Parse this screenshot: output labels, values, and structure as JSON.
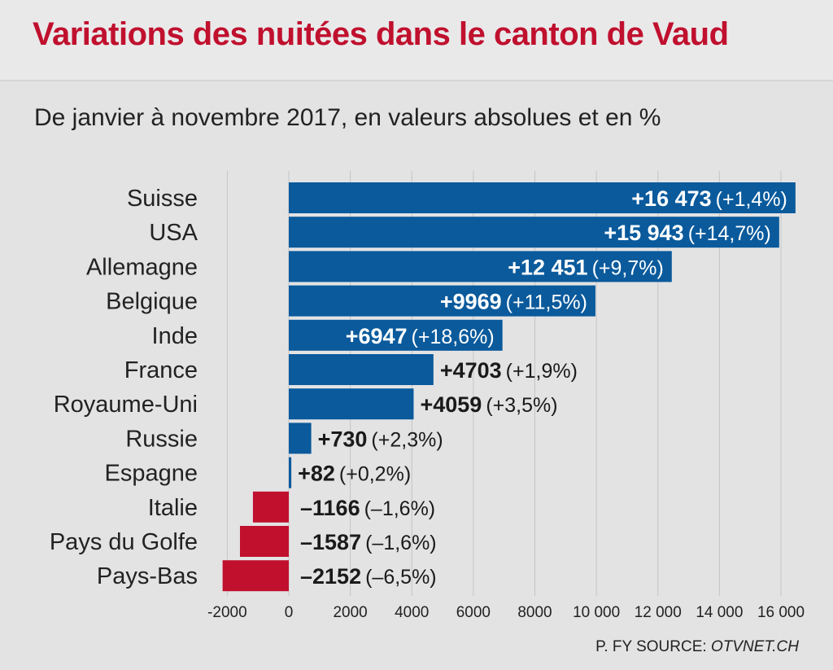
{
  "title": "Variations des nuitées dans le canton de Vaud",
  "subtitle": "De janvier à novembre 2017, en valeurs absolues et en %",
  "source": {
    "prefix": "P. FY SOURCE: ",
    "name": "OTVNET.CH"
  },
  "colors": {
    "positive": "#0a5a9c",
    "negative": "#c0102e",
    "grid": "#c4c4c6",
    "title": "#c0102e"
  },
  "chart_data": {
    "type": "bar",
    "orientation": "horizontal",
    "categories": [
      "Suisse",
      "USA",
      "Allemagne",
      "Belgique",
      "Inde",
      "France",
      "Royaume-Uni",
      "Russie",
      "Espagne",
      "Italie",
      "Pays du Golfe",
      "Pays-Bas"
    ],
    "values": [
      16473,
      15943,
      12451,
      9969,
      6947,
      4703,
      4059,
      730,
      82,
      -1166,
      -1587,
      -2152
    ],
    "value_labels": [
      "+16 473",
      "+15 943",
      "+12 451",
      "+9969",
      "+6947",
      "+4703",
      "+4059",
      "+730",
      "+82",
      "–1166",
      "–1587",
      "–2152"
    ],
    "percent_labels": [
      "(+1,4%)",
      "(+14,7%)",
      "(+9,7%)",
      "(+11,5%)",
      "(+18,6%)",
      "(+1,9%)",
      "(+3,5%)",
      "(+2,3%)",
      "(+0,2%)",
      "(–1,6%)",
      "(–1,6%)",
      "(–6,5%)"
    ],
    "xlim": [
      -2000,
      16000
    ],
    "xticks": [
      -2000,
      0,
      2000,
      4000,
      6000,
      8000,
      10000,
      12000,
      14000,
      16000
    ],
    "xtick_labels": [
      "-2000",
      "0",
      "2000",
      "4000",
      "6000",
      "8000",
      "10 000",
      "12 000",
      "14 000",
      "16 000"
    ],
    "grid": true
  }
}
